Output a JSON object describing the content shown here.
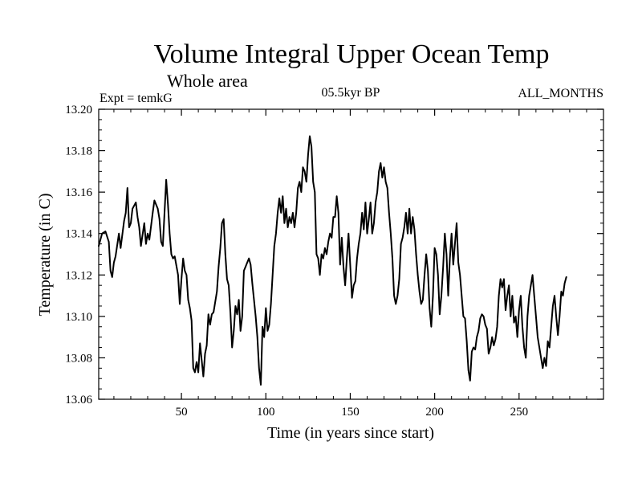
{
  "chart_data": {
    "type": "line",
    "title": "Volume Integral Upper Ocean Temp",
    "subtitle": "Whole area",
    "left_label": "Expt = temkG",
    "center_label": "05.5kyr BP",
    "right_label": "ALL_MONTHS",
    "xlabel": "Time (in years since start)",
    "ylabel": "Temperature (in C)",
    "xlim": [
      1,
      300
    ],
    "ylim": [
      13.06,
      13.2
    ],
    "xticks": [
      50,
      100,
      150,
      200,
      250
    ],
    "yticks": [
      13.06,
      13.08,
      13.1,
      13.12,
      13.14,
      13.16,
      13.18,
      13.2
    ],
    "ytick_labels": [
      "13.06",
      "13.08",
      "13.10",
      "13.12",
      "13.14",
      "13.16",
      "13.18",
      "13.20"
    ],
    "grid": false,
    "series": [
      {
        "name": "Volume Integral Upper Ocean Temp",
        "color": "#000000",
        "points": [
          [
            1,
            13.134
          ],
          [
            3,
            13.14
          ],
          [
            5,
            13.141
          ],
          [
            7,
            13.136
          ],
          [
            8,
            13.122
          ],
          [
            9,
            13.119
          ],
          [
            10,
            13.126
          ],
          [
            11,
            13.129
          ],
          [
            13,
            13.14
          ],
          [
            14,
            13.133
          ],
          [
            16,
            13.146
          ],
          [
            17,
            13.15
          ],
          [
            18,
            13.162
          ],
          [
            19,
            13.143
          ],
          [
            20,
            13.145
          ],
          [
            21,
            13.152
          ],
          [
            23,
            13.155
          ],
          [
            24,
            13.148
          ],
          [
            25,
            13.143
          ],
          [
            26,
            13.134
          ],
          [
            28,
            13.145
          ],
          [
            29,
            13.135
          ],
          [
            30,
            13.14
          ],
          [
            31,
            13.137
          ],
          [
            33,
            13.15
          ],
          [
            34,
            13.156
          ],
          [
            36,
            13.152
          ],
          [
            37,
            13.147
          ],
          [
            38,
            13.136
          ],
          [
            39,
            13.134
          ],
          [
            40,
            13.15
          ],
          [
            41,
            13.166
          ],
          [
            42,
            13.154
          ],
          [
            43,
            13.14
          ],
          [
            44,
            13.13
          ],
          [
            45,
            13.128
          ],
          [
            46,
            13.129
          ],
          [
            48,
            13.12
          ],
          [
            49,
            13.106
          ],
          [
            50,
            13.118
          ],
          [
            51,
            13.128
          ],
          [
            52,
            13.122
          ],
          [
            53,
            13.12
          ],
          [
            54,
            13.108
          ],
          [
            55,
            13.104
          ],
          [
            56,
            13.098
          ],
          [
            57,
            13.075
          ],
          [
            58,
            13.073
          ],
          [
            59,
            13.078
          ],
          [
            60,
            13.073
          ],
          [
            61,
            13.087
          ],
          [
            62,
            13.079
          ],
          [
            63,
            13.071
          ],
          [
            64,
            13.082
          ],
          [
            65,
            13.086
          ],
          [
            66,
            13.101
          ],
          [
            67,
            13.096
          ],
          [
            68,
            13.101
          ],
          [
            69,
            13.102
          ],
          [
            71,
            13.112
          ],
          [
            72,
            13.124
          ],
          [
            73,
            13.133
          ],
          [
            74,
            13.145
          ],
          [
            75,
            13.147
          ],
          [
            76,
            13.13
          ],
          [
            77,
            13.118
          ],
          [
            78,
            13.115
          ],
          [
            79,
            13.102
          ],
          [
            80,
            13.085
          ],
          [
            81,
            13.093
          ],
          [
            82,
            13.105
          ],
          [
            83,
            13.101
          ],
          [
            84,
            13.108
          ],
          [
            85,
            13.093
          ],
          [
            86,
            13.1
          ],
          [
            87,
            13.122
          ],
          [
            88,
            13.124
          ],
          [
            89,
            13.126
          ],
          [
            90,
            13.128
          ],
          [
            91,
            13.125
          ],
          [
            92,
            13.116
          ],
          [
            94,
            13.1
          ],
          [
            95,
            13.09
          ],
          [
            96,
            13.075
          ],
          [
            97,
            13.067
          ],
          [
            98,
            13.095
          ],
          [
            99,
            13.09
          ],
          [
            100,
            13.104
          ],
          [
            101,
            13.093
          ],
          [
            102,
            13.096
          ],
          [
            103,
            13.106
          ],
          [
            104,
            13.12
          ],
          [
            105,
            13.134
          ],
          [
            106,
            13.14
          ],
          [
            107,
            13.15
          ],
          [
            108,
            13.157
          ],
          [
            109,
            13.15
          ],
          [
            110,
            13.158
          ],
          [
            111,
            13.145
          ],
          [
            112,
            13.152
          ],
          [
            113,
            13.143
          ],
          [
            114,
            13.148
          ],
          [
            115,
            13.145
          ],
          [
            116,
            13.15
          ],
          [
            117,
            13.143
          ],
          [
            118,
            13.15
          ],
          [
            119,
            13.162
          ],
          [
            120,
            13.165
          ],
          [
            121,
            13.16
          ],
          [
            122,
            13.172
          ],
          [
            123,
            13.17
          ],
          [
            124,
            13.165
          ],
          [
            125,
            13.178
          ],
          [
            126,
            13.187
          ],
          [
            127,
            13.182
          ],
          [
            128,
            13.165
          ],
          [
            129,
            13.16
          ],
          [
            130,
            13.13
          ],
          [
            131,
            13.128
          ],
          [
            132,
            13.12
          ],
          [
            133,
            13.13
          ],
          [
            134,
            13.128
          ],
          [
            135,
            13.133
          ],
          [
            136,
            13.13
          ],
          [
            137,
            13.136
          ],
          [
            138,
            13.14
          ],
          [
            139,
            13.138
          ],
          [
            140,
            13.148
          ],
          [
            141,
            13.148
          ],
          [
            142,
            13.158
          ],
          [
            143,
            13.15
          ],
          [
            144,
            13.125
          ],
          [
            145,
            13.138
          ],
          [
            146,
            13.124
          ],
          [
            147,
            13.115
          ],
          [
            148,
            13.128
          ],
          [
            149,
            13.14
          ],
          [
            150,
            13.125
          ],
          [
            151,
            13.109
          ],
          [
            152,
            13.115
          ],
          [
            153,
            13.117
          ],
          [
            154,
            13.128
          ],
          [
            155,
            13.135
          ],
          [
            156,
            13.14
          ],
          [
            157,
            13.15
          ],
          [
            158,
            13.142
          ],
          [
            159,
            13.155
          ],
          [
            160,
            13.14
          ],
          [
            161,
            13.147
          ],
          [
            162,
            13.155
          ],
          [
            163,
            13.14
          ],
          [
            164,
            13.145
          ],
          [
            165,
            13.155
          ],
          [
            166,
            13.16
          ],
          [
            167,
            13.17
          ],
          [
            168,
            13.174
          ],
          [
            169,
            13.167
          ],
          [
            170,
            13.172
          ],
          [
            171,
            13.165
          ],
          [
            172,
            13.162
          ],
          [
            173,
            13.15
          ],
          [
            174,
            13.14
          ],
          [
            175,
            13.128
          ],
          [
            176,
            13.11
          ],
          [
            177,
            13.106
          ],
          [
            178,
            13.11
          ],
          [
            179,
            13.118
          ],
          [
            180,
            13.135
          ],
          [
            181,
            13.138
          ],
          [
            182,
            13.143
          ],
          [
            183,
            13.15
          ],
          [
            184,
            13.14
          ],
          [
            185,
            13.152
          ],
          [
            186,
            13.14
          ],
          [
            187,
            13.148
          ],
          [
            188,
            13.142
          ],
          [
            189,
            13.13
          ],
          [
            190,
            13.12
          ],
          [
            191,
            13.112
          ],
          [
            192,
            13.106
          ],
          [
            193,
            13.108
          ],
          [
            194,
            13.12
          ],
          [
            195,
            13.13
          ],
          [
            196,
            13.122
          ],
          [
            197,
            13.104
          ],
          [
            198,
            13.095
          ],
          [
            199,
            13.11
          ],
          [
            200,
            13.133
          ],
          [
            201,
            13.13
          ],
          [
            202,
            13.12
          ],
          [
            203,
            13.101
          ],
          [
            204,
            13.11
          ],
          [
            205,
            13.124
          ],
          [
            206,
            13.14
          ],
          [
            207,
            13.13
          ],
          [
            208,
            13.11
          ],
          [
            209,
            13.128
          ],
          [
            210,
            13.14
          ],
          [
            211,
            13.125
          ],
          [
            212,
            13.135
          ],
          [
            213,
            13.145
          ],
          [
            214,
            13.126
          ],
          [
            215,
            13.12
          ],
          [
            216,
            13.11
          ],
          [
            217,
            13.1
          ],
          [
            218,
            13.099
          ],
          [
            219,
            13.088
          ],
          [
            220,
            13.074
          ],
          [
            221,
            13.069
          ],
          [
            222,
            13.083
          ],
          [
            223,
            13.085
          ],
          [
            224,
            13.084
          ],
          [
            225,
            13.09
          ],
          [
            226,
            13.093
          ],
          [
            227,
            13.099
          ],
          [
            228,
            13.101
          ],
          [
            229,
            13.1
          ],
          [
            230,
            13.096
          ],
          [
            231,
            13.094
          ],
          [
            232,
            13.082
          ],
          [
            233,
            13.085
          ],
          [
            234,
            13.09
          ],
          [
            235,
            13.086
          ],
          [
            236,
            13.089
          ],
          [
            237,
            13.095
          ],
          [
            238,
            13.11
          ],
          [
            239,
            13.118
          ],
          [
            240,
            13.114
          ],
          [
            241,
            13.118
          ],
          [
            242,
            13.103
          ],
          [
            243,
            13.11
          ],
          [
            244,
            13.115
          ],
          [
            245,
            13.1
          ],
          [
            246,
            13.11
          ],
          [
            247,
            13.097
          ],
          [
            248,
            13.1
          ],
          [
            249,
            13.09
          ],
          [
            250,
            13.103
          ],
          [
            251,
            13.11
          ],
          [
            252,
            13.095
          ],
          [
            253,
            13.085
          ],
          [
            254,
            13.08
          ],
          [
            255,
            13.1
          ],
          [
            256,
            13.11
          ],
          [
            257,
            13.115
          ],
          [
            258,
            13.12
          ],
          [
            259,
            13.11
          ],
          [
            260,
            13.1
          ],
          [
            261,
            13.09
          ],
          [
            262,
            13.085
          ],
          [
            263,
            13.08
          ],
          [
            264,
            13.075
          ],
          [
            265,
            13.08
          ],
          [
            266,
            13.076
          ],
          [
            267,
            13.088
          ],
          [
            268,
            13.085
          ],
          [
            269,
            13.095
          ],
          [
            270,
            13.105
          ],
          [
            271,
            13.11
          ],
          [
            272,
            13.1
          ],
          [
            273,
            13.091
          ],
          [
            274,
            13.1
          ],
          [
            275,
            13.112
          ],
          [
            276,
            13.11
          ],
          [
            277,
            13.116
          ],
          [
            278,
            13.119
          ]
        ]
      }
    ]
  }
}
